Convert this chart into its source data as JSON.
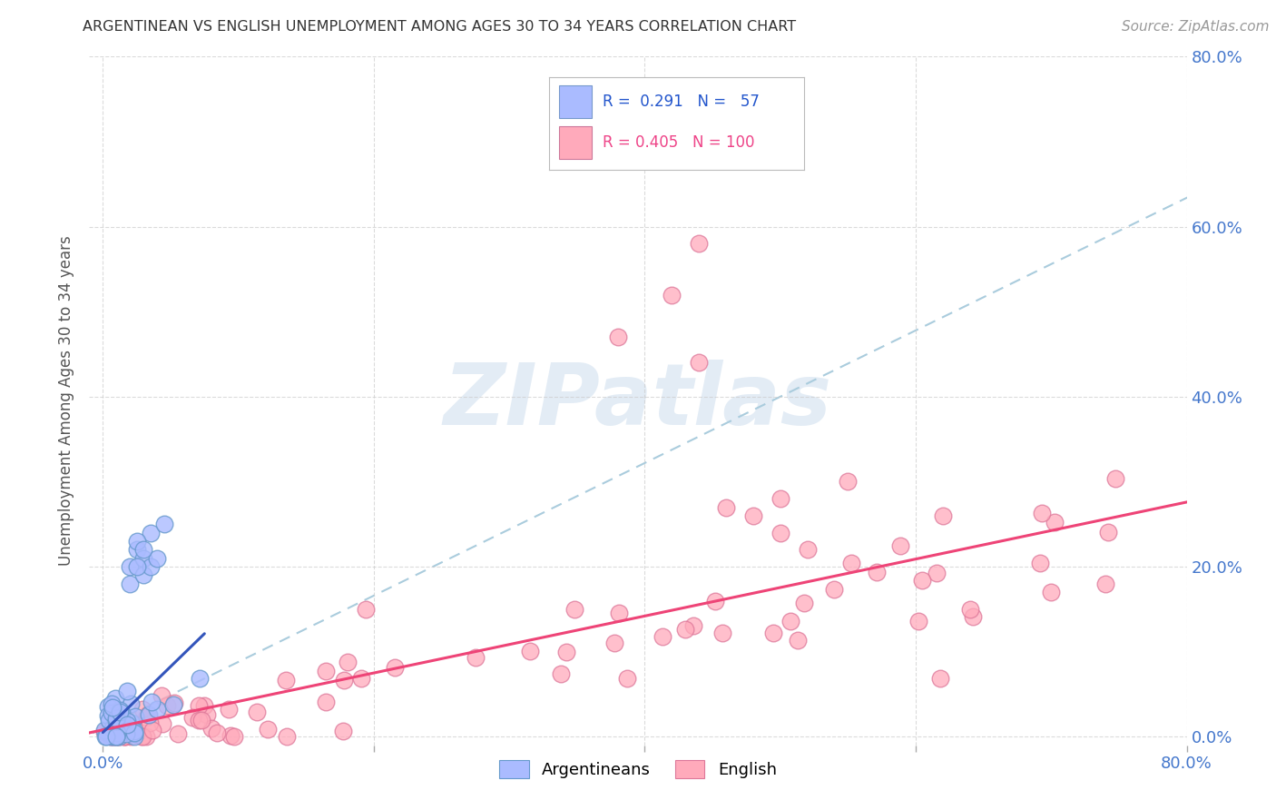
{
  "title": "ARGENTINEAN VS ENGLISH UNEMPLOYMENT AMONG AGES 30 TO 34 YEARS CORRELATION CHART",
  "source": "Source: ZipAtlas.com",
  "ylabel": "Unemployment Among Ages 30 to 34 years",
  "xlim": [
    0.0,
    0.8
  ],
  "ylim": [
    0.0,
    0.8
  ],
  "background_color": "#ffffff",
  "grid_color": "#cccccc",
  "watermark_text": "ZIPatlas",
  "legend_R1": "0.291",
  "legend_N1": "57",
  "legend_R2": "0.405",
  "legend_N2": "100",
  "blue_face_color": "#aabbff",
  "blue_edge_color": "#6699cc",
  "pink_face_color": "#ffaabb",
  "pink_edge_color": "#dd7799",
  "blue_line_color": "#3355bb",
  "pink_line_color": "#ee4477",
  "dash_line_color": "#aaccdd",
  "tick_color": "#4477cc",
  "title_color": "#333333",
  "source_color": "#999999",
  "ylabel_color": "#555555"
}
